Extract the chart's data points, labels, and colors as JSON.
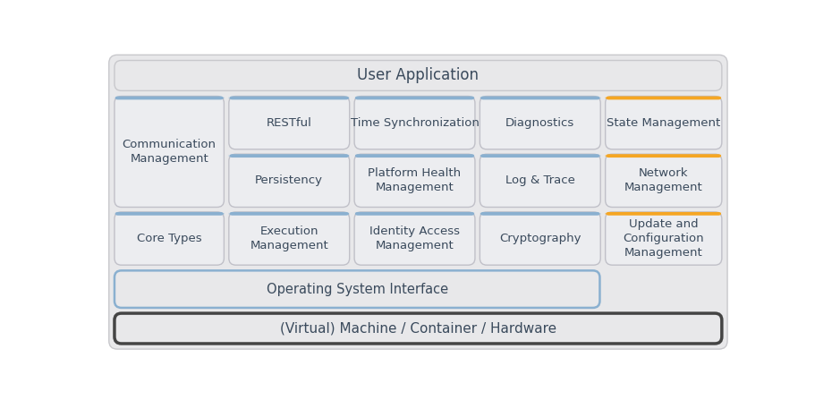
{
  "fig_bg": "#ffffff",
  "outer_bg": "#e8e8ea",
  "outer_edge": "#c8c8cc",
  "box_face": "#ecedf0",
  "box_edge_blue": "#8ab0d0",
  "box_edge_orange": "#f5a623",
  "box_edge_grey": "#c0c0c8",
  "text_color": "#3a4a5c",
  "title": "User Application",
  "bottom_label": "(Virtual) Machine / Container / Hardware",
  "os_label": "Operating System Interface",
  "cells": [
    {
      "col": 0,
      "row": 0,
      "rowspan": 2,
      "label": "Communication\nManagement",
      "border": "blue"
    },
    {
      "col": 1,
      "row": 0,
      "rowspan": 1,
      "label": "RESTful",
      "border": "blue"
    },
    {
      "col": 2,
      "row": 0,
      "rowspan": 1,
      "label": "Time Synchronization",
      "border": "blue"
    },
    {
      "col": 3,
      "row": 0,
      "rowspan": 1,
      "label": "Diagnostics",
      "border": "blue"
    },
    {
      "col": 4,
      "row": 0,
      "rowspan": 1,
      "label": "State Management",
      "border": "orange"
    },
    {
      "col": 1,
      "row": 1,
      "rowspan": 1,
      "label": "Persistency",
      "border": "blue"
    },
    {
      "col": 2,
      "row": 1,
      "rowspan": 1,
      "label": "Platform Health\nManagement",
      "border": "blue"
    },
    {
      "col": 3,
      "row": 1,
      "rowspan": 1,
      "label": "Log & Trace",
      "border": "blue"
    },
    {
      "col": 4,
      "row": 1,
      "rowspan": 1,
      "label": "Network\nManagement",
      "border": "orange"
    },
    {
      "col": 0,
      "row": 2,
      "rowspan": 1,
      "label": "Core Types",
      "border": "blue"
    },
    {
      "col": 1,
      "row": 2,
      "rowspan": 1,
      "label": "Execution\nManagement",
      "border": "blue"
    },
    {
      "col": 2,
      "row": 2,
      "rowspan": 1,
      "label": "Identity Access\nManagement",
      "border": "blue"
    },
    {
      "col": 3,
      "row": 2,
      "rowspan": 1,
      "label": "Cryptography",
      "border": "blue"
    },
    {
      "col": 4,
      "row": 2,
      "rowspan": 1,
      "label": "Update and\nConfiguration\nManagement",
      "border": "orange"
    }
  ]
}
